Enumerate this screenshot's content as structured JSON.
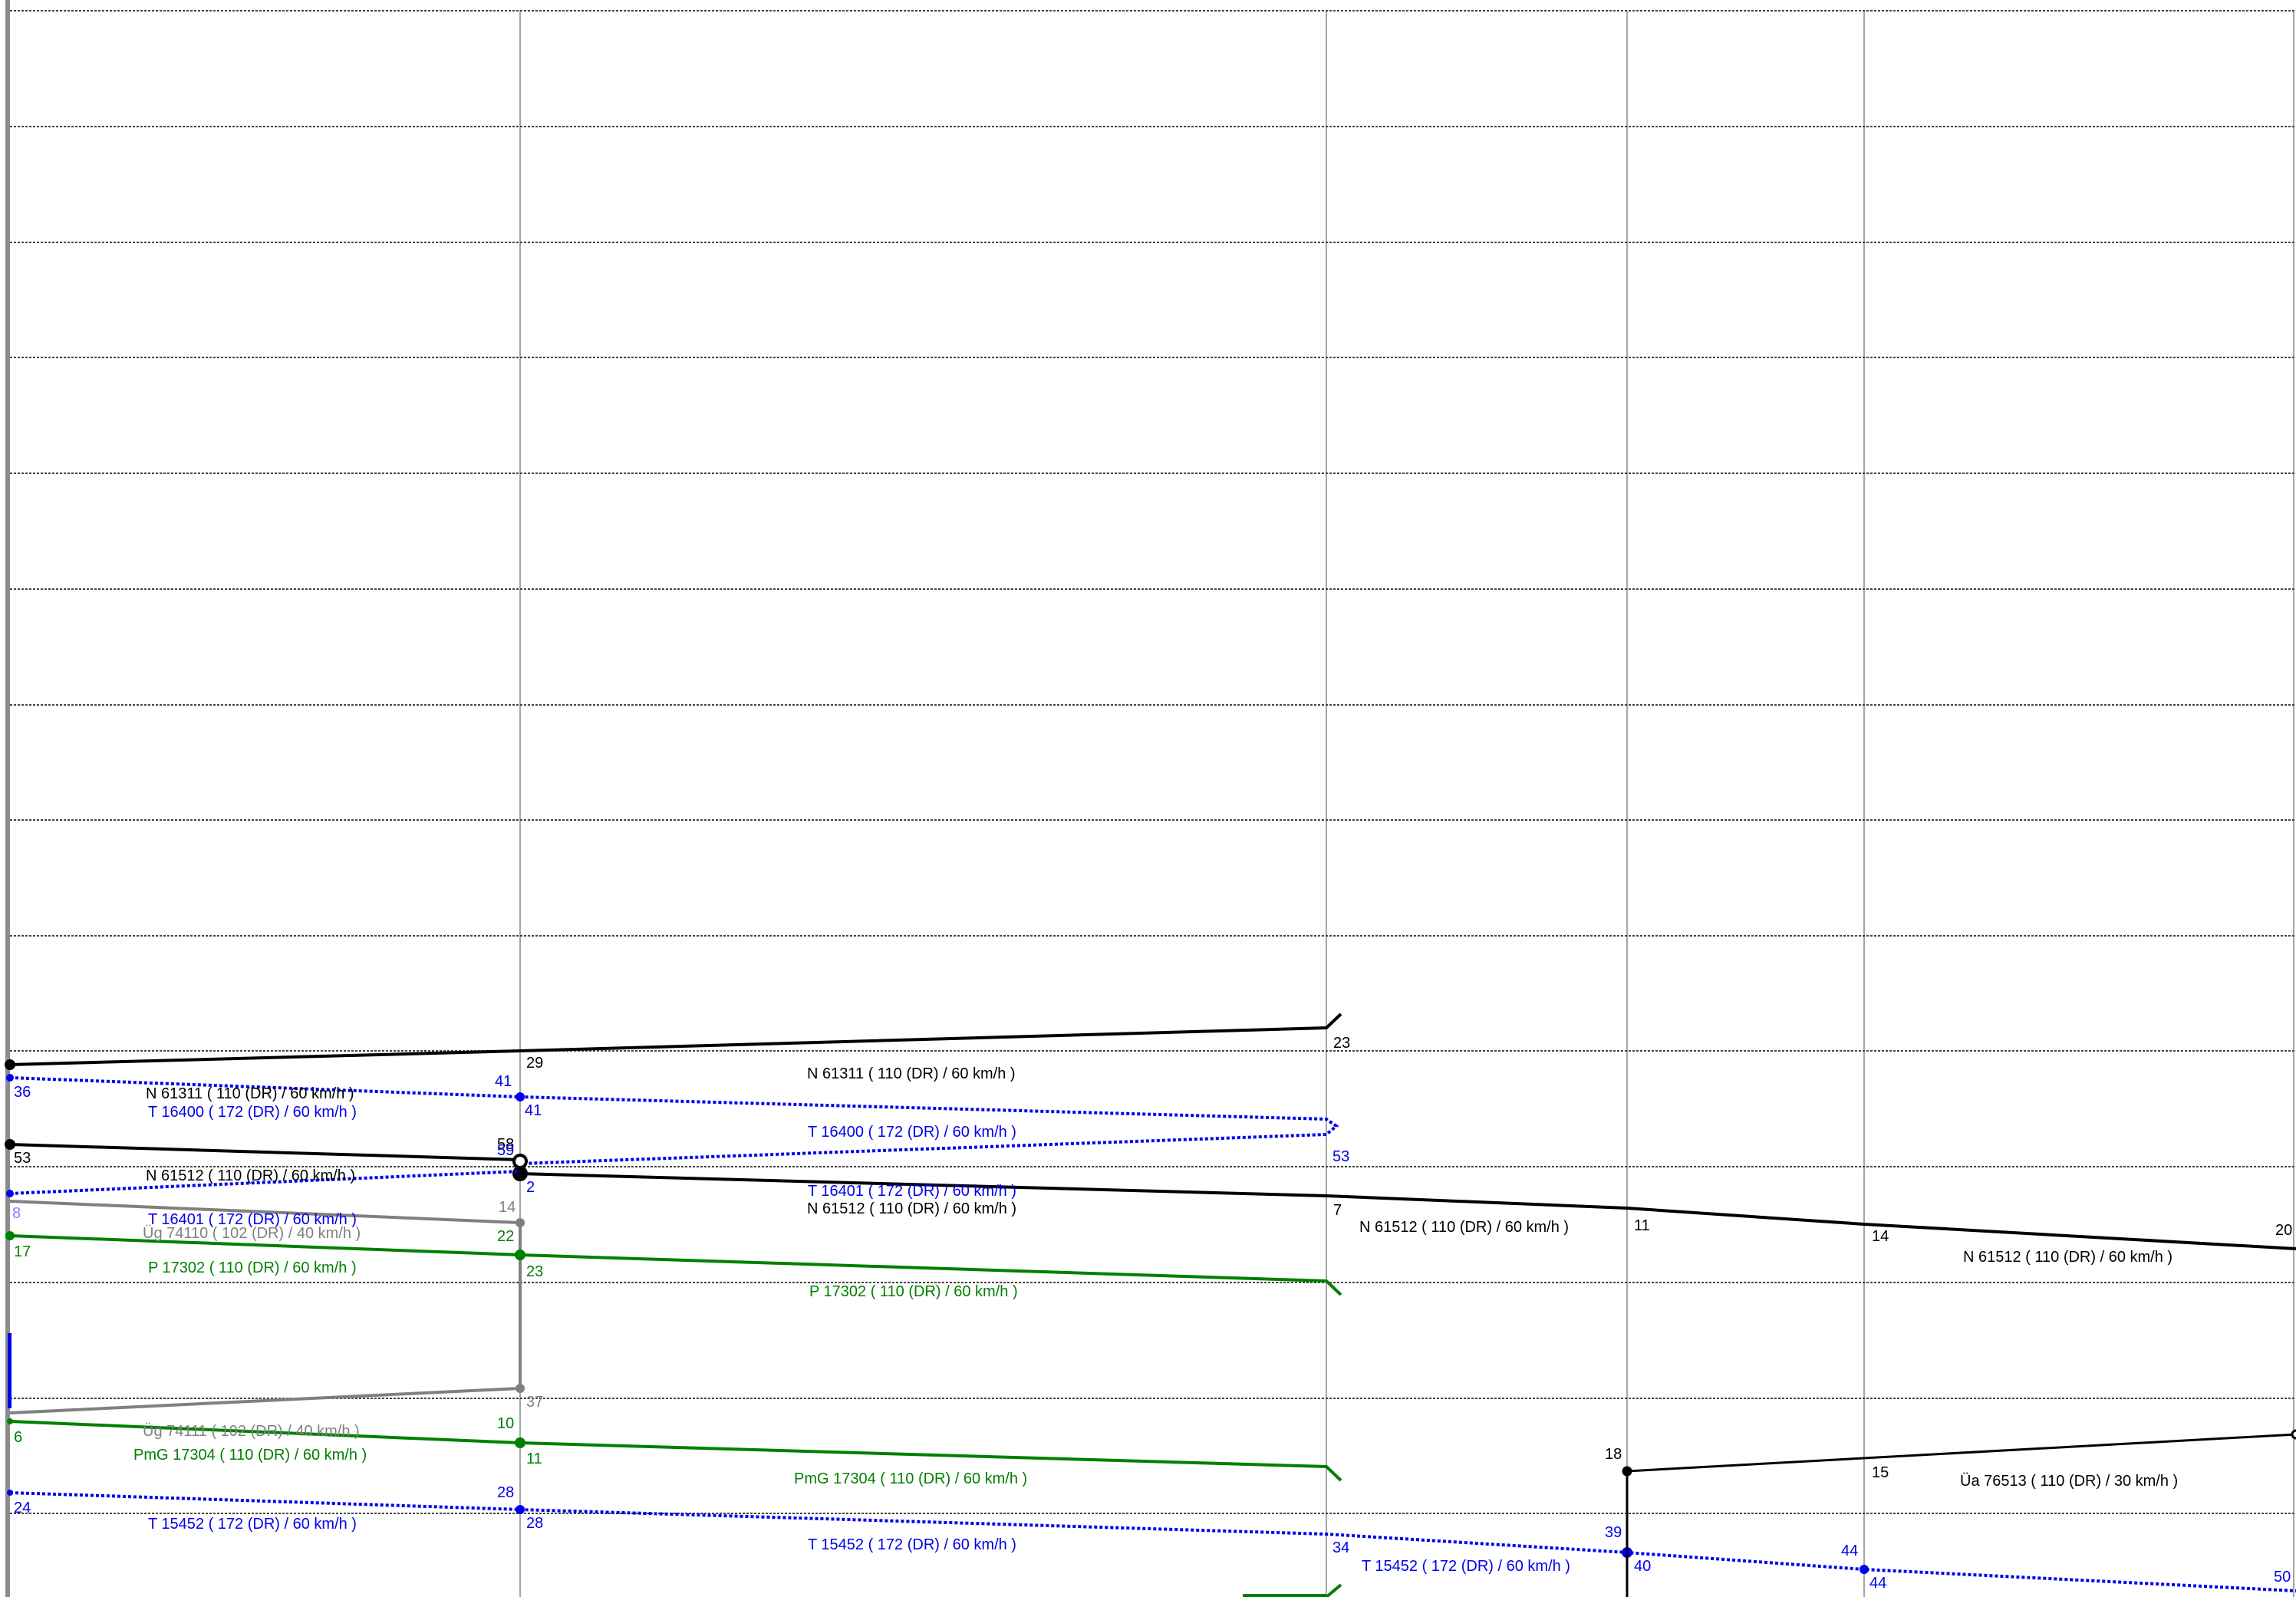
{
  "diagram": {
    "type": "train-graph",
    "colors": {
      "N": "#000000",
      "T": "#0000ee",
      "P": "#008000",
      "Ug": "#808080",
      "grid": "#999999",
      "hline": "#333333"
    },
    "trains": [
      {
        "id": "n61311",
        "color": "#000000",
        "labels": [
          "N 61311 ( 110 (DR) / 60 km/h )",
          "N 61311 ( 110 (DR) / 60 km/h )"
        ]
      },
      {
        "id": "t16400",
        "color": "#0000ee",
        "labels": [
          "T 16400 ( 172 (DR) / 60 km/h )",
          "T 16400 ( 172 (DR) / 60 km/h )"
        ]
      },
      {
        "id": "n61512",
        "color": "#000000",
        "labels": [
          "N 61512 ( 110 (DR) / 60 km/h )",
          "N 61512 ( 110 (DR) / 60 km/h )",
          "N 61512 ( 110 (DR) / 60 km/h )",
          "N 61512 ( 110 (DR) / 60 km/h )"
        ]
      },
      {
        "id": "t16401",
        "color": "#0000ee",
        "labels": [
          "T 16401 ( 172 (DR) / 60 km/h )",
          "T 16401 ( 172 (DR) / 60 km/h )"
        ]
      },
      {
        "id": "ug74110",
        "color": "#808080",
        "labels": [
          "Üg 74110 ( 102 (DR) / 40 km/h )"
        ]
      },
      {
        "id": "p17302",
        "color": "#008000",
        "labels": [
          "P 17302 ( 110 (DR) / 60 km/h )",
          "P 17302 ( 110 (DR) / 60 km/h )"
        ]
      },
      {
        "id": "ug74111",
        "color": "#808080",
        "labels": [
          "Üg 74111 ( 102 (DR) / 40 km/h )"
        ]
      },
      {
        "id": "pmg17304",
        "color": "#008000",
        "labels": [
          "PmG 17304 ( 110 (DR) / 60 km/h )",
          "PmG 17304 ( 110 (DR) / 60 km/h )"
        ]
      },
      {
        "id": "t15452",
        "color": "#0000ee",
        "labels": [
          "T 15452 ( 172 (DR) / 60 km/h )",
          "T 15452 ( 172 (DR) / 60 km/h )",
          "T 15452 ( 172 (DR) / 60 km/h )"
        ]
      },
      {
        "id": "ua76513",
        "color": "#000000",
        "labels": [
          "Üa 76513 ( 110 (DR) / 30 km/h )"
        ]
      }
    ],
    "minute_labels": {
      "n61311": [
        "29",
        "23"
      ],
      "t16400": [
        "36",
        "41",
        "41",
        "53"
      ],
      "n61512": [
        "53",
        "58",
        "7",
        "11",
        "14",
        "20"
      ],
      "t16401": [
        "8",
        "59",
        "2"
      ],
      "ug74110": [
        "14"
      ],
      "p17302": [
        "17",
        "22",
        "23"
      ],
      "ug74111": [
        "37"
      ],
      "pmg17304": [
        "6",
        "10",
        "11"
      ],
      "t15452": [
        "24",
        "28",
        "28",
        "34",
        "39",
        "40",
        "44",
        "44",
        "50"
      ],
      "ua76513": [
        "18",
        "15"
      ]
    }
  }
}
